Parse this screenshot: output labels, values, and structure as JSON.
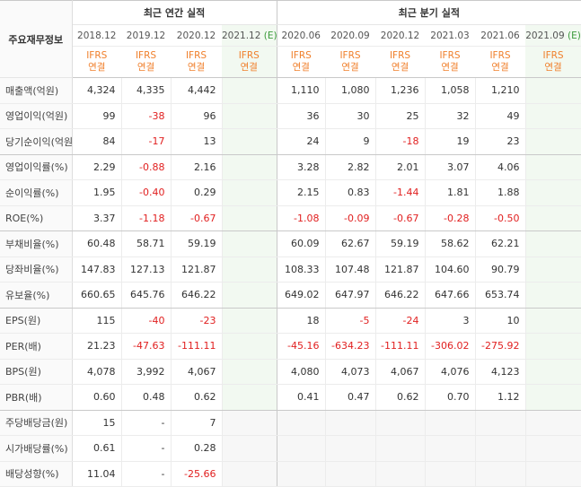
{
  "corner_label": "주요재무정보",
  "group_annual": "최근 연간 실적",
  "group_quarter": "최근 분기 실적",
  "periods": [
    {
      "label": "2018.12",
      "est": ""
    },
    {
      "label": "2019.12",
      "est": ""
    },
    {
      "label": "2020.12",
      "est": ""
    },
    {
      "label": "2021.12",
      "est": "(E)"
    },
    {
      "label": "2020.06",
      "est": ""
    },
    {
      "label": "2020.09",
      "est": ""
    },
    {
      "label": "2020.12",
      "est": ""
    },
    {
      "label": "2021.03",
      "est": ""
    },
    {
      "label": "2021.06",
      "est": ""
    },
    {
      "label": "2021.09",
      "est": "(E)"
    }
  ],
  "ifrs_top": "IFRS",
  "ifrs_bottom": "연결",
  "rows": [
    {
      "label": "매출액(억원)",
      "values": [
        "4,324",
        "4,335",
        "4,442",
        "",
        "1,110",
        "1,080",
        "1,236",
        "1,058",
        "1,210",
        ""
      ]
    },
    {
      "label": "영업이익(억원)",
      "values": [
        "99",
        "-38",
        "96",
        "",
        "36",
        "30",
        "25",
        "32",
        "49",
        ""
      ]
    },
    {
      "label": "당기순이익(억원)",
      "values": [
        "84",
        "-17",
        "13",
        "",
        "24",
        "9",
        "-18",
        "19",
        "23",
        ""
      ]
    },
    {
      "label": "영업이익률(%)",
      "values": [
        "2.29",
        "-0.88",
        "2.16",
        "",
        "3.28",
        "2.82",
        "2.01",
        "3.07",
        "4.06",
        ""
      ]
    },
    {
      "label": "순이익률(%)",
      "values": [
        "1.95",
        "-0.40",
        "0.29",
        "",
        "2.15",
        "0.83",
        "-1.44",
        "1.81",
        "1.88",
        ""
      ]
    },
    {
      "label": "ROE(%)",
      "values": [
        "3.37",
        "-1.18",
        "-0.67",
        "",
        "-1.08",
        "-0.09",
        "-0.67",
        "-0.28",
        "-0.50",
        ""
      ]
    },
    {
      "label": "부채비율(%)",
      "values": [
        "60.48",
        "58.71",
        "59.19",
        "",
        "60.09",
        "62.67",
        "59.19",
        "58.62",
        "62.21",
        ""
      ]
    },
    {
      "label": "당좌비율(%)",
      "values": [
        "147.83",
        "127.13",
        "121.87",
        "",
        "108.33",
        "107.48",
        "121.87",
        "104.60",
        "90.79",
        ""
      ]
    },
    {
      "label": "유보율(%)",
      "values": [
        "660.65",
        "645.76",
        "646.22",
        "",
        "649.02",
        "647.97",
        "646.22",
        "647.66",
        "653.74",
        ""
      ]
    },
    {
      "label": "EPS(원)",
      "values": [
        "115",
        "-40",
        "-23",
        "",
        "18",
        "-5",
        "-24",
        "3",
        "10",
        ""
      ]
    },
    {
      "label": "PER(배)",
      "values": [
        "21.23",
        "-47.63",
        "-111.11",
        "",
        "-45.16",
        "-634.23",
        "-111.11",
        "-306.02",
        "-275.92",
        ""
      ]
    },
    {
      "label": "BPS(원)",
      "values": [
        "4,078",
        "3,992",
        "4,067",
        "",
        "4,080",
        "4,073",
        "4,067",
        "4,076",
        "4,123",
        ""
      ]
    },
    {
      "label": "PBR(배)",
      "values": [
        "0.60",
        "0.48",
        "0.62",
        "",
        "0.41",
        "0.47",
        "0.62",
        "0.70",
        "1.12",
        ""
      ]
    },
    {
      "label": "주당배당금(원)",
      "values": [
        "15",
        "-",
        "7",
        "",
        "",
        "",
        "",
        "",
        "",
        ""
      ]
    },
    {
      "label": "시가배당률(%)",
      "values": [
        "0.61",
        "-",
        "0.28",
        "",
        "",
        "",
        "",
        "",
        "",
        ""
      ]
    },
    {
      "label": "배당성향(%)",
      "values": [
        "11.04",
        "-",
        "-25.66",
        "",
        "",
        "",
        "",
        "",
        "",
        ""
      ]
    }
  ]
}
